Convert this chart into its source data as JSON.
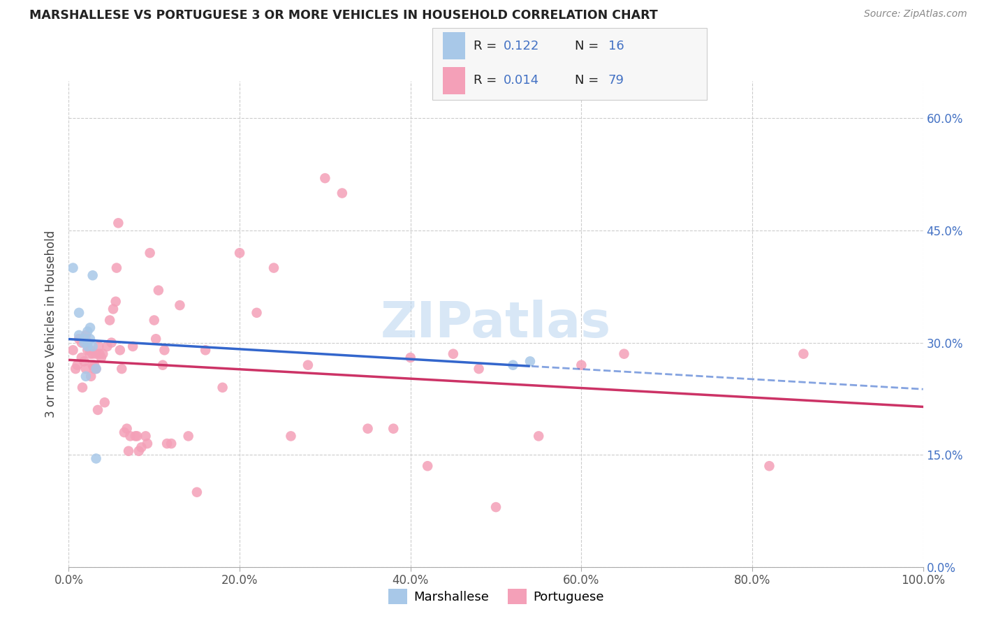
{
  "title": "MARSHALLESE VS PORTUGUESE 3 OR MORE VEHICLES IN HOUSEHOLD CORRELATION CHART",
  "source": "Source: ZipAtlas.com",
  "ylabel": "3 or more Vehicles in Household",
  "xlim": [
    0.0,
    1.0
  ],
  "ylim": [
    0.0,
    0.65
  ],
  "marshallese_R": "0.122",
  "marshallese_N": "16",
  "portuguese_R": "0.014",
  "portuguese_N": "79",
  "marshallese_color": "#a8c8e8",
  "portuguese_color": "#f4a0b8",
  "marshallese_line_color": "#3366cc",
  "portuguese_line_color": "#cc3366",
  "watermark_text": "ZIPatlas",
  "watermark_color": "#b8d4f0",
  "grid_color": "#cccccc",
  "bg_color": "#ffffff",
  "title_color": "#222222",
  "source_color": "#888888",
  "ylabel_color": "#444444",
  "tick_label_color": "#555555",
  "right_tick_color": "#4472c4",
  "legend_text_color": "#222222",
  "legend_R_N_color": "#4472c4",
  "marshallese_scatter_x": [
    0.005,
    0.012,
    0.012,
    0.018,
    0.018,
    0.02,
    0.022,
    0.022,
    0.025,
    0.025,
    0.028,
    0.028,
    0.032,
    0.032,
    0.52,
    0.54
  ],
  "marshallese_scatter_y": [
    0.4,
    0.31,
    0.34,
    0.305,
    0.3,
    0.255,
    0.315,
    0.295,
    0.32,
    0.305,
    0.39,
    0.295,
    0.145,
    0.265,
    0.27,
    0.275
  ],
  "portuguese_scatter_x": [
    0.005,
    0.008,
    0.01,
    0.012,
    0.015,
    0.015,
    0.016,
    0.018,
    0.02,
    0.02,
    0.022,
    0.022,
    0.025,
    0.025,
    0.026,
    0.028,
    0.028,
    0.03,
    0.03,
    0.032,
    0.032,
    0.034,
    0.035,
    0.036,
    0.038,
    0.04,
    0.042,
    0.045,
    0.048,
    0.05,
    0.052,
    0.055,
    0.056,
    0.058,
    0.06,
    0.062,
    0.065,
    0.068,
    0.07,
    0.072,
    0.075,
    0.078,
    0.08,
    0.082,
    0.085,
    0.09,
    0.092,
    0.095,
    0.1,
    0.102,
    0.105,
    0.11,
    0.112,
    0.115,
    0.12,
    0.13,
    0.14,
    0.15,
    0.16,
    0.18,
    0.2,
    0.22,
    0.24,
    0.26,
    0.28,
    0.3,
    0.32,
    0.35,
    0.38,
    0.4,
    0.42,
    0.45,
    0.48,
    0.5,
    0.55,
    0.6,
    0.65,
    0.82,
    0.86
  ],
  "portuguese_scatter_y": [
    0.29,
    0.265,
    0.27,
    0.305,
    0.3,
    0.28,
    0.24,
    0.275,
    0.265,
    0.31,
    0.3,
    0.29,
    0.29,
    0.285,
    0.255,
    0.27,
    0.285,
    0.265,
    0.27,
    0.265,
    0.285,
    0.21,
    0.295,
    0.285,
    0.28,
    0.285,
    0.22,
    0.295,
    0.33,
    0.3,
    0.345,
    0.355,
    0.4,
    0.46,
    0.29,
    0.265,
    0.18,
    0.185,
    0.155,
    0.175,
    0.295,
    0.175,
    0.175,
    0.155,
    0.16,
    0.175,
    0.165,
    0.42,
    0.33,
    0.305,
    0.37,
    0.27,
    0.29,
    0.165,
    0.165,
    0.35,
    0.175,
    0.1,
    0.29,
    0.24,
    0.42,
    0.34,
    0.4,
    0.175,
    0.27,
    0.52,
    0.5,
    0.185,
    0.185,
    0.28,
    0.135,
    0.285,
    0.265,
    0.08,
    0.175,
    0.27,
    0.285,
    0.135,
    0.285
  ],
  "x_tick_positions": [
    0.0,
    0.2,
    0.4,
    0.6,
    0.8,
    1.0
  ],
  "x_tick_labels": [
    "0.0%",
    "20.0%",
    "40.0%",
    "60.0%",
    "80.0%",
    "100.0%"
  ],
  "y_tick_positions": [
    0.0,
    0.15,
    0.3,
    0.45,
    0.6
  ],
  "y_tick_labels": [
    "0.0%",
    "15.0%",
    "30.0%",
    "45.0%",
    "60.0%"
  ]
}
